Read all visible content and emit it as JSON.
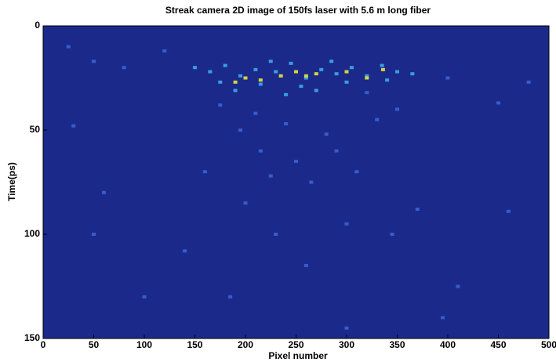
{
  "chart_data": {
    "type": "scatter",
    "title": "Streak camera 2D image of 150fs laser with 5.6 m long fiber",
    "x_label": "Pixel number",
    "y_label": "Time(ps)",
    "xlim": [
      0,
      500
    ],
    "ylim": [
      0,
      150
    ],
    "y_reversed": true,
    "xticks": [
      0,
      50,
      100,
      150,
      200,
      250,
      300,
      350,
      400,
      450,
      500
    ],
    "yticks": [
      0,
      50,
      100,
      150
    ],
    "background": "#1b2a8a",
    "series": [
      {
        "color": "#3c62d6",
        "x": [
          25,
          50,
          80,
          120,
          400,
          450,
          480,
          30,
          60,
          200,
          215,
          240,
          265,
          290,
          310,
          330,
          230,
          260,
          140,
          370,
          460,
          100,
          300,
          395,
          185,
          350,
          210,
          280,
          320,
          175,
          250,
          225,
          195,
          410,
          50,
          160,
          300,
          345
        ],
        "y": [
          10,
          17,
          20,
          12,
          25,
          37,
          27,
          48,
          80,
          85,
          60,
          47,
          75,
          60,
          70,
          45,
          100,
          115,
          108,
          88,
          89,
          130,
          145,
          140,
          130,
          40,
          42,
          52,
          32,
          38,
          65,
          72,
          50,
          125,
          100,
          70,
          95,
          100
        ]
      },
      {
        "color": "#3fa9f0",
        "x": [
          150,
          165,
          180,
          195,
          210,
          230,
          245,
          260,
          275,
          290,
          305,
          320,
          335,
          350,
          365,
          175,
          215,
          255,
          300,
          340,
          225,
          285,
          190,
          270,
          240
        ],
        "y": [
          20,
          22,
          19,
          24,
          21,
          22,
          18,
          25,
          21,
          23,
          20,
          24,
          19,
          22,
          23,
          27,
          28,
          29,
          27,
          26,
          17,
          17,
          31,
          31,
          33
        ]
      },
      {
        "color": "#e8e83a",
        "x": [
          200,
          215,
          235,
          250,
          270,
          300,
          320,
          336,
          190,
          260
        ],
        "y": [
          25,
          26,
          24,
          22,
          23,
          22,
          25,
          21,
          27,
          24
        ]
      }
    ]
  }
}
